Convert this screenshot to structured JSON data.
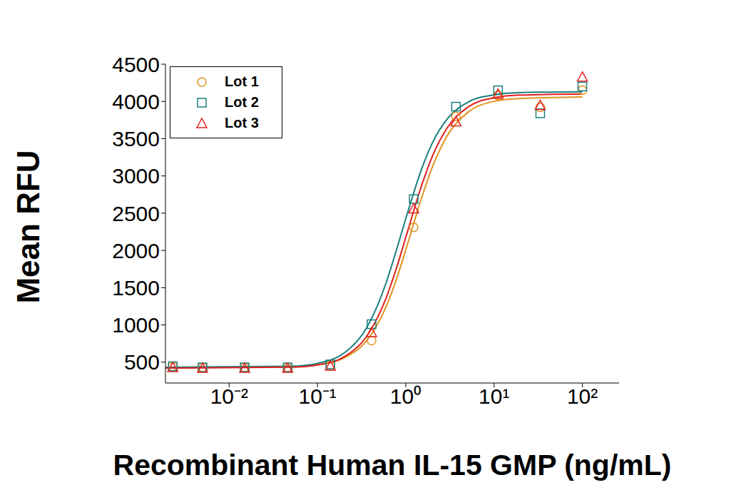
{
  "chart_data": {
    "type": "scatter",
    "log": "x",
    "legend": "top-left",
    "grid": false,
    "x_label": "Recombinant Human IL-15 GMP (ng/mL)",
    "y_label": "Mean RFU",
    "xlim": [
      0.0019,
      260
    ],
    "xticks": [
      {
        "value": 0.01,
        "label": "10⁻²"
      },
      {
        "value": 0.1,
        "label": "10⁻¹"
      },
      {
        "value": 1,
        "label": "10⁰"
      },
      {
        "value": 10,
        "label": "10¹"
      },
      {
        "value": 100,
        "label": "10²"
      }
    ],
    "ylim": [
      220,
      4500
    ],
    "yticks": [
      500,
      1000,
      1500,
      2000,
      2500,
      3000,
      3500,
      4000,
      4500
    ],
    "x": [
      0.0023,
      0.005,
      0.015,
      0.046,
      0.14,
      0.41,
      1.23,
      3.7,
      11.1,
      33.3,
      100
    ],
    "fit_x": [
      0.0019,
      0.05,
      0.1,
      0.2,
      0.4,
      0.6,
      0.8,
      1,
      1.5,
      2,
      3,
      5,
      10,
      20,
      100
    ],
    "series": [
      {
        "name": "Lot 1",
        "color": "#e0921e",
        "marker": "circle",
        "values": [
          440,
          430,
          430,
          430,
          450,
          790,
          2310,
          3800,
          4080,
          3920,
          4150
        ],
        "fit_values": [
          430,
          438,
          465,
          556,
          860,
          1246,
          1644,
          2008,
          2693,
          3119,
          3554,
          3850,
          4001,
          4040,
          4060
        ]
      },
      {
        "name": "Lot 2",
        "color": "#1b7f7f",
        "marker": "square",
        "values": [
          445,
          430,
          430,
          430,
          470,
          1010,
          2690,
          3930,
          4150,
          3840,
          4200
        ],
        "fit_values": [
          430,
          445,
          484,
          622,
          1060,
          1568,
          2039,
          2427,
          3082,
          3443,
          3775,
          3987,
          4090,
          4120,
          4130
        ]
      },
      {
        "name": "Lot 3",
        "color": "#e0201e",
        "marker": "triangle",
        "values": [
          430,
          420,
          420,
          420,
          450,
          900,
          2560,
          3730,
          4100,
          3950,
          4330
        ],
        "fit_values": [
          420,
          432,
          462,
          571,
          928,
          1364,
          1795,
          2175,
          2860,
          3264,
          3660,
          3920,
          4050,
          4085,
          4100
        ]
      }
    ]
  }
}
